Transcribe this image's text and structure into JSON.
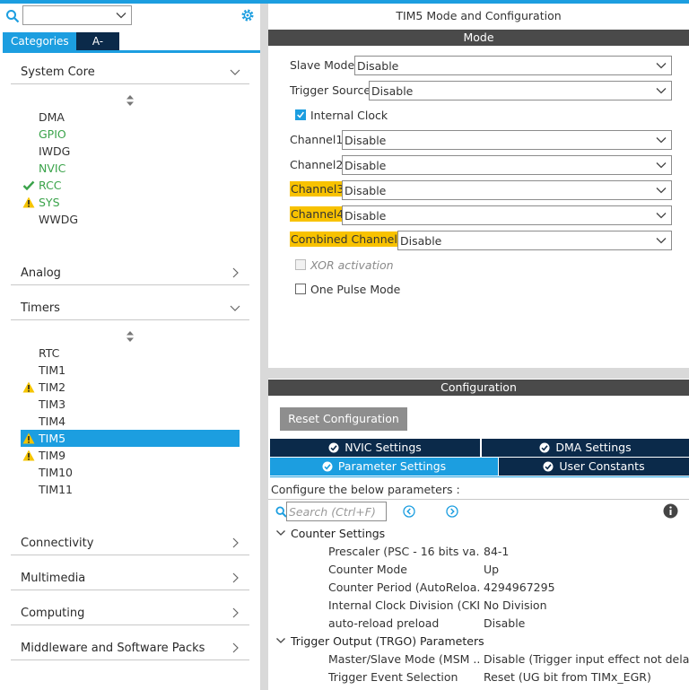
{
  "left": {
    "tabs": {
      "categories": "Categories",
      "az": "A->Z"
    },
    "categories": {
      "system_core": "System Core",
      "analog": "Analog",
      "timers": "Timers",
      "connectivity": "Connectivity",
      "multimedia": "Multimedia",
      "computing": "Computing",
      "middleware": "Middleware and Software Packs"
    },
    "system_core_items": [
      "DMA",
      "GPIO",
      "IWDG",
      "NVIC",
      "RCC",
      "SYS",
      "WWDG"
    ],
    "timer_items": [
      "RTC",
      "TIM1",
      "TIM2",
      "TIM3",
      "TIM4",
      "TIM5",
      "TIM9",
      "TIM10",
      "TIM11"
    ]
  },
  "right": {
    "title": "TIM5 Mode and Configuration",
    "mode_bar": "Mode",
    "mode": {
      "slave_mode": {
        "label": "Slave Mode",
        "value": "Disable"
      },
      "trigger_source": {
        "label": "Trigger Source",
        "value": "Disable"
      },
      "internal_clock": {
        "label": "Internal Clock",
        "checked": true
      },
      "channel1": {
        "label": "Channel1",
        "value": "Disable"
      },
      "channel2": {
        "label": "Channel2",
        "value": "Disable"
      },
      "channel3": {
        "label": "Channel3",
        "value": "Disable"
      },
      "channel4": {
        "label": "Channel4",
        "value": "Disable"
      },
      "combined": {
        "label": "Combined Channels",
        "value": "Disable"
      },
      "xor": {
        "label": "XOR activation",
        "checked": false
      },
      "one_pulse": {
        "label": "One Pulse Mode",
        "checked": false
      }
    },
    "config_bar": "Configuration",
    "reset_button": "Reset Configuration",
    "config_tabs": {
      "nvic": "NVIC Settings",
      "dma": "DMA Settings",
      "parameter": "Parameter Settings",
      "user": "User Constants"
    },
    "param_hint": "Configure the below parameters :",
    "search_placeholder": "Search (Ctrl+F)",
    "counter_settings": {
      "title": "Counter Settings",
      "rows": [
        {
          "name": "Prescaler (PSC - 16 bits va...",
          "value": "84-1"
        },
        {
          "name": "Counter Mode",
          "value": "Up"
        },
        {
          "name": "Counter Period (AutoReloa...",
          "value": "4294967295"
        },
        {
          "name": "Internal Clock Division (CKD)",
          "value": "No Division"
        },
        {
          "name": "auto-reload preload",
          "value": "Disable"
        }
      ]
    },
    "trgo": {
      "title": "Trigger Output (TRGO) Parameters",
      "rows": [
        {
          "name": "Master/Slave Mode (MSM ...",
          "value": "Disable (Trigger input effect not delay..."
        },
        {
          "name": "Trigger Event Selection",
          "value": "Reset (UG bit from TIMx_EGR)"
        }
      ]
    }
  },
  "colors": {
    "accent": "#1c9ee0",
    "dark_tab": "#0b2a4a",
    "highlight": "#f8c200",
    "ok_green": "#3aa34a",
    "warning": "#f5c400"
  }
}
